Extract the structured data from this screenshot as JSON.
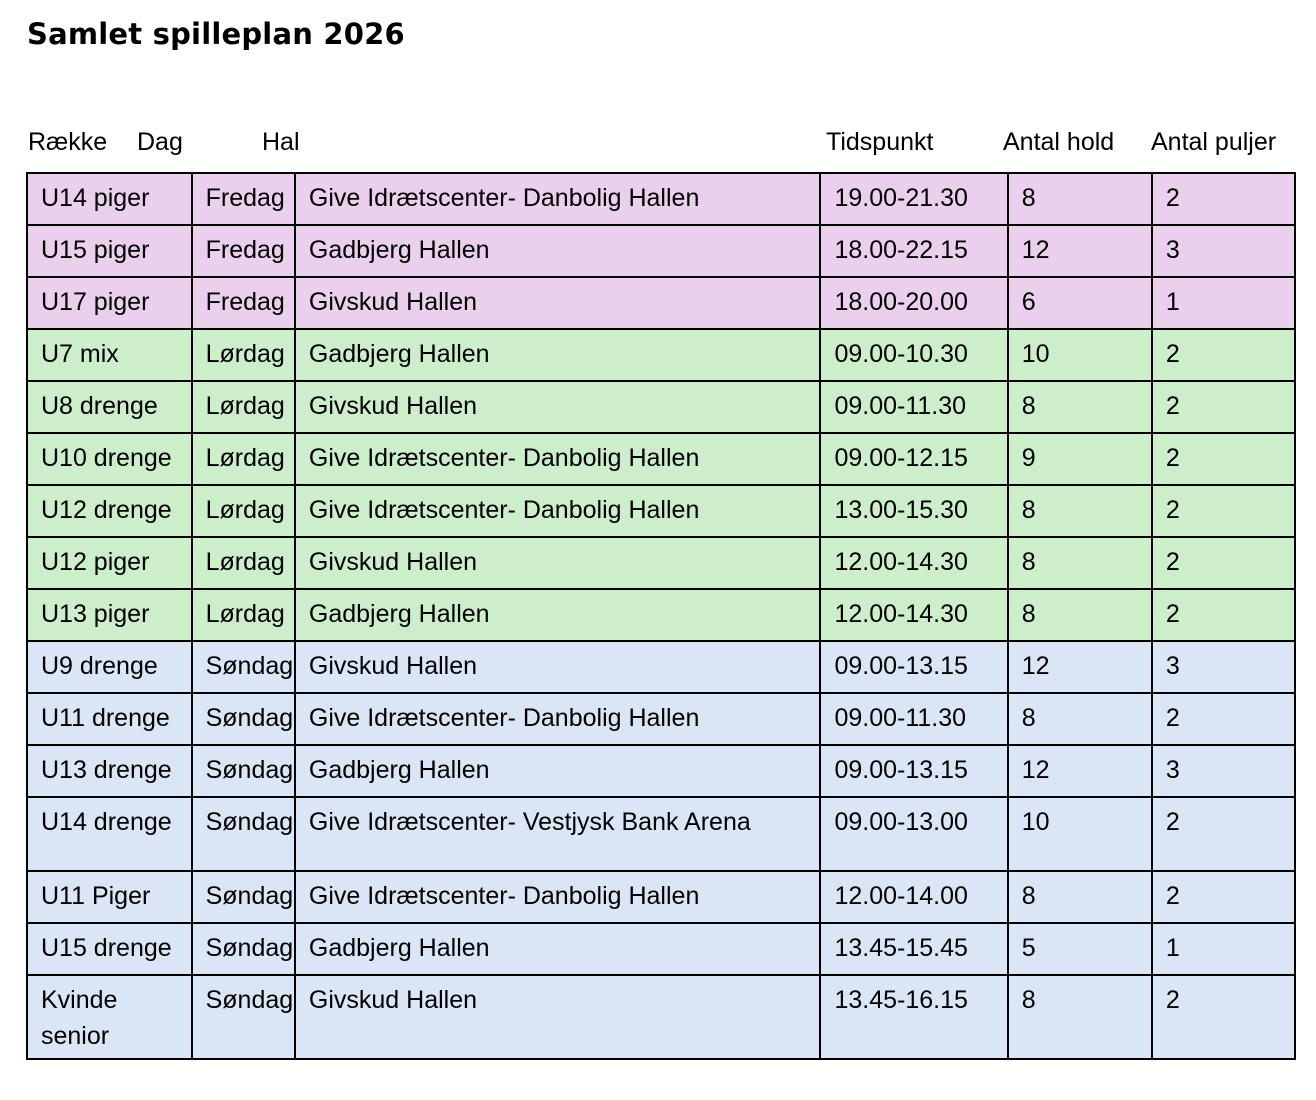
{
  "title": "Samlet spilleplan 2026",
  "headers": {
    "raekke": "Række",
    "dag": "Dag",
    "hal": "Hal",
    "tidspunkt": "Tidspunkt",
    "antal_hold": "Antal hold",
    "antal_puljer": "Antal puljer"
  },
  "day_colors": {
    "Fredag": "#ead0ec",
    "Lørdag": "#cdeeca",
    "Søndag": "#dae6f5"
  },
  "rows": [
    {
      "raekke": "U14 piger",
      "dag": "Fredag",
      "hal": "Give Idrætscenter- Danbolig Hallen",
      "tidspunkt": "19.00-21.30",
      "antal_hold": "8",
      "antal_puljer": "2"
    },
    {
      "raekke": "U15 piger",
      "dag": "Fredag",
      "hal": "Gadbjerg Hallen",
      "tidspunkt": "18.00-22.15",
      "antal_hold": "12",
      "antal_puljer": "3"
    },
    {
      "raekke": "U17 piger",
      "dag": "Fredag",
      "hal": "Givskud Hallen",
      "tidspunkt": "18.00-20.00",
      "antal_hold": "6",
      "antal_puljer": "1"
    },
    {
      "raekke": "U7 mix",
      "dag": "Lørdag",
      "hal": "Gadbjerg Hallen",
      "tidspunkt": "09.00-10.30",
      "antal_hold": "10",
      "antal_puljer": "2"
    },
    {
      "raekke": "U8 drenge",
      "dag": "Lørdag",
      "hal": "Givskud Hallen",
      "tidspunkt": "09.00-11.30",
      "antal_hold": "8",
      "antal_puljer": "2"
    },
    {
      "raekke": "U10 drenge",
      "dag": "Lørdag",
      "hal": "Give Idrætscenter- Danbolig Hallen",
      "tidspunkt": "09.00-12.15",
      "antal_hold": "9",
      "antal_puljer": "2"
    },
    {
      "raekke": "U12 drenge",
      "dag": "Lørdag",
      "hal": "Give Idrætscenter- Danbolig Hallen",
      "tidspunkt": "13.00-15.30",
      "antal_hold": "8",
      "antal_puljer": "2"
    },
    {
      "raekke": "U12 piger",
      "dag": "Lørdag",
      "hal": "Givskud Hallen",
      "tidspunkt": "12.00-14.30",
      "antal_hold": "8",
      "antal_puljer": "2"
    },
    {
      "raekke": "U13 piger",
      "dag": "Lørdag",
      "hal": "Gadbjerg Hallen",
      "tidspunkt": "12.00-14.30",
      "antal_hold": "8",
      "antal_puljer": "2"
    },
    {
      "raekke": "U9 drenge",
      "dag": "Søndag",
      "hal": "Givskud Hallen",
      "tidspunkt": "09.00-13.15",
      "antal_hold": "12",
      "antal_puljer": "3"
    },
    {
      "raekke": "U11 drenge",
      "dag": "Søndag",
      "hal": "Give Idrætscenter- Danbolig Hallen",
      "tidspunkt": "09.00-11.30",
      "antal_hold": "8",
      "antal_puljer": "2"
    },
    {
      "raekke": "U13 drenge",
      "dag": "Søndag",
      "hal": "Gadbjerg Hallen",
      "tidspunkt": "09.00-13.15",
      "antal_hold": "12",
      "antal_puljer": "3"
    },
    {
      "raekke": "U14 drenge",
      "dag": "Søndag",
      "hal": "Give Idrætscenter- Vestjysk Bank Arena",
      "tidspunkt": "09.00-13.00",
      "antal_hold": "10",
      "antal_puljer": "2"
    },
    {
      "raekke": "U11 Piger",
      "dag": "Søndag",
      "hal": "Give Idrætscenter- Danbolig Hallen",
      "tidspunkt": "12.00-14.00",
      "antal_hold": "8",
      "antal_puljer": "2"
    },
    {
      "raekke": "U15 drenge",
      "dag": "Søndag",
      "hal": "Gadbjerg Hallen",
      "tidspunkt": "13.45-15.45",
      "antal_hold": "5",
      "antal_puljer": "1"
    },
    {
      "raekke": "Kvinde senior",
      "dag": "Søndag",
      "hal": "Givskud Hallen",
      "tidspunkt": "13.45-16.15",
      "antal_hold": "8",
      "antal_puljer": "2"
    }
  ]
}
